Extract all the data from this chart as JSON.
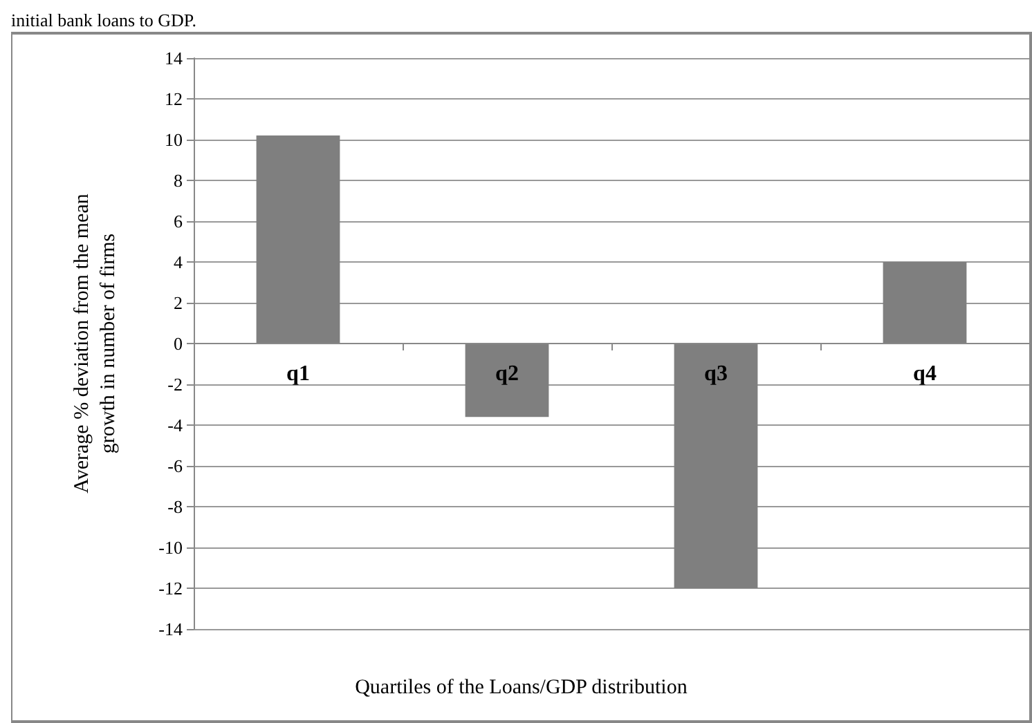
{
  "chart_data": {
    "type": "bar",
    "xlabel": "Quartiles of the Loans/GDP distribution",
    "ylabel": "Average % deviation from the mean\ngrowth in number of firms",
    "annotations": [
      "initial bank loans to GDP."
    ],
    "categories": [
      "q1",
      "q2",
      "q3",
      "q4"
    ],
    "values": [
      10.2,
      -3.6,
      -12.0,
      4.0
    ],
    "color": "#7f7f7f",
    "ylim": [
      -14,
      14
    ],
    "yticks": [
      -14,
      -12,
      -10,
      -8,
      -6,
      -4,
      -2,
      0,
      2,
      4,
      6,
      8,
      10,
      12,
      14
    ],
    "grid": "y"
  }
}
